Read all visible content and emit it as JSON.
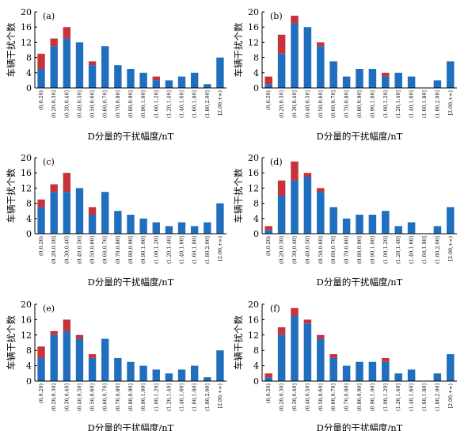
{
  "colors": {
    "blue": "#1f6fbe",
    "red": "#c8323a",
    "axis": "#000000"
  },
  "chart_data": [
    {
      "type": "bar",
      "stacked": true,
      "panel_label": "(a)",
      "categories": [
        "(0,0.20)",
        "(0.20,0.30]",
        "(0.30,0.40]",
        "(0.40,0.50]",
        "(0.50,0.60]",
        "(0.60,0.70]",
        "(0.70,0.80]",
        "(0.80,0.90]",
        "(0.90,1.00]",
        "(1.00,1.20]",
        "(1.20,1.40]",
        "(1.40,1.60]",
        "(1.60,1.80]",
        "(1.80,2.00]",
        "[2.00,+∞)"
      ],
      "series": [
        {
          "values": [
            5,
            11,
            13,
            12,
            6,
            11,
            6,
            5,
            4,
            2,
            2,
            3,
            4,
            1,
            8
          ]
        },
        {
          "values": [
            4,
            2,
            3,
            0,
            1,
            0,
            0,
            0,
            0,
            1,
            0,
            0,
            0,
            0,
            0
          ]
        }
      ],
      "xlabel": "D分量的干扰幅度/nT",
      "ylabel": "车辆干扰个数",
      "ylim": [
        0,
        20
      ],
      "yticks": [
        0,
        4,
        8,
        12,
        16,
        20
      ]
    },
    {
      "type": "bar",
      "stacked": true,
      "panel_label": "(b)",
      "categories": [
        "(0,0.20)",
        "(0.20,0.30]",
        "(0.30,0.40]",
        "(0.40,0.50]",
        "(0.50,0.60]",
        "(0.60,0.70]",
        "(0.70,0.80]",
        "(0.80,0.90]",
        "(0.90,1.00]",
        "(1.00,1.20]",
        "(1.20,1.40]",
        "(1.40,1.60]",
        "(1.60,1.80]",
        "(1.80,2.00]",
        "[2.00,+∞)"
      ],
      "series": [
        {
          "values": [
            1,
            9,
            17,
            16,
            11,
            7,
            3,
            5,
            5,
            3,
            4,
            3,
            0,
            2,
            7
          ]
        },
        {
          "values": [
            2,
            5,
            2,
            0,
            1,
            0,
            0,
            0,
            0,
            1,
            0,
            0,
            0,
            0,
            0
          ]
        }
      ],
      "xlabel": "D分量的干扰幅度/nT",
      "ylabel": "车辆干扰个数",
      "ylim": [
        0,
        20
      ],
      "yticks": [
        0,
        4,
        8,
        12,
        16,
        20
      ]
    },
    {
      "type": "bar",
      "stacked": true,
      "panel_label": "(c)",
      "categories": [
        "(0,0.20)",
        "(0.20,0.30]",
        "(0.30,0.40]",
        "(0.40,0.50]",
        "(0.50,0.60]",
        "(0.60,0.70]",
        "(0.70,0.80]",
        "(0.80,0.90]",
        "(0.90,1.00]",
        "(1.00,1.20]",
        "(1.20,1.40]",
        "(1.40,1.60]",
        "(1.60,1.80]",
        "(1.80,2.00]",
        "[2.00,+∞)"
      ],
      "series": [
        {
          "values": [
            7,
            11,
            11,
            12,
            5,
            11,
            6,
            5,
            4,
            3,
            2,
            3,
            2,
            3,
            8
          ]
        },
        {
          "values": [
            2,
            2,
            5,
            0,
            2,
            0,
            0,
            0,
            0,
            0,
            0,
            0,
            0,
            0,
            0
          ]
        }
      ],
      "xlabel": "D分量的干扰幅度/nT",
      "ylabel": "车辆干扰个数",
      "ylim": [
        0,
        20
      ],
      "yticks": [
        0,
        4,
        8,
        12,
        16,
        20
      ]
    },
    {
      "type": "bar",
      "stacked": true,
      "panel_label": "(d)",
      "categories": [
        "(0,0.20)",
        "(0.20,0.30]",
        "(0.30,0.40]",
        "(0.40,0.50]",
        "(0.50,0.60]",
        "(0.60,0.70]",
        "(0.70,0.80]",
        "(0.80,0.90]",
        "(0.90,1.00]",
        "(1.00,1.20]",
        "(1.20,1.40]",
        "(1.40,1.60]",
        "(1.60,1.80]",
        "(1.80,2.00]",
        "[2.00,+∞)"
      ],
      "series": [
        {
          "values": [
            1,
            10,
            14,
            15,
            11,
            7,
            4,
            5,
            5,
            6,
            2,
            3,
            0,
            2,
            7
          ]
        },
        {
          "values": [
            1,
            4,
            5,
            1,
            1,
            0,
            0,
            0,
            0,
            0,
            0,
            0,
            0,
            0,
            0
          ]
        }
      ],
      "xlabel": "D分量的干扰幅度/nT",
      "ylabel": "车辆干扰个数",
      "ylim": [
        0,
        20
      ],
      "yticks": [
        0,
        4,
        8,
        12,
        16,
        20
      ]
    },
    {
      "type": "bar",
      "stacked": true,
      "panel_label": "(e)",
      "categories": [
        "(0,0.20)",
        "(0.20,0.30]",
        "(0.30,0.40]",
        "(0.40,0.50]",
        "(0.50,0.60]",
        "(0.60,0.70]",
        "(0.70,0.80]",
        "(0.80,0.90]",
        "(0.90,1.00]",
        "(1.00,1.20]",
        "(1.20,1.40]",
        "(1.40,1.60]",
        "(1.60,1.80]",
        "(1.80,2.00]",
        "[2.00,+∞)"
      ],
      "series": [
        {
          "values": [
            6,
            12,
            13,
            11,
            6,
            11,
            6,
            5,
            4,
            3,
            2,
            3,
            4,
            1,
            8
          ]
        },
        {
          "values": [
            3,
            1,
            3,
            1,
            1,
            0,
            0,
            0,
            0,
            0,
            0,
            0,
            0,
            0,
            0
          ]
        }
      ],
      "xlabel": "D分量的干扰幅度/nT",
      "ylabel": "车辆干扰个数",
      "ylim": [
        0,
        20
      ],
      "yticks": [
        0,
        4,
        8,
        12,
        16,
        20
      ]
    },
    {
      "type": "bar",
      "stacked": true,
      "panel_label": "(f)",
      "categories": [
        "(0,0.20)",
        "(0.20,0.30]",
        "(0.30,0.40]",
        "(0.40,0.50]",
        "(0.50,0.60]",
        "(0.60,0.70]",
        "(0.70,0.80]",
        "(0.80,0.90]",
        "(0.90,1.00]",
        "(1.00,1.20]",
        "(1.20,1.40]",
        "(1.40,1.60]",
        "(1.60,1.80]",
        "(1.80,2.00]",
        "[2.00,+∞)"
      ],
      "series": [
        {
          "values": [
            1,
            12,
            17,
            15,
            11,
            6,
            4,
            5,
            5,
            5,
            2,
            3,
            0,
            2,
            7
          ]
        },
        {
          "values": [
            1,
            2,
            2,
            1,
            1,
            1,
            0,
            0,
            0,
            1,
            0,
            0,
            0,
            0,
            0
          ]
        }
      ],
      "xlabel": "D分量的干扰幅度/nT",
      "ylabel": "车辆干扰个数",
      "ylim": [
        0,
        20
      ],
      "yticks": [
        0,
        4,
        8,
        12,
        16,
        20
      ]
    }
  ]
}
